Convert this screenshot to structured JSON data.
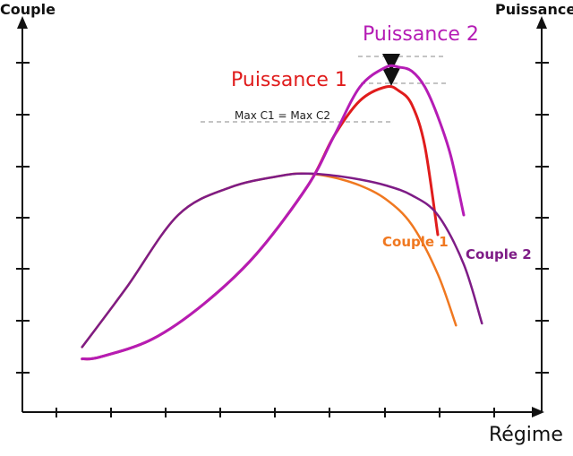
{
  "chart_data": {
    "type": "line",
    "title": "",
    "xlabel": "Régime",
    "ylabel_left": "Couple",
    "ylabel_right": "Puissance",
    "xlim": [
      0,
      20
    ],
    "ylim": [
      0,
      20
    ],
    "grid": false,
    "series": [
      {
        "name": "Couple 1",
        "color": "#f07820",
        "x": [
          2.3,
          4.0,
          6.0,
          8.0,
          10.0,
          11.0,
          12.0,
          13.0,
          14.0,
          15.0,
          16.0,
          16.7
        ],
        "y": [
          3.3,
          6.3,
          10.0,
          11.4,
          12.0,
          12.1,
          11.9,
          11.5,
          10.8,
          9.5,
          7.0,
          4.4
        ]
      },
      {
        "name": "Couple 2",
        "color": "#7e1c86",
        "x": [
          2.3,
          4.0,
          6.0,
          8.0,
          10.0,
          11.0,
          12.0,
          13.0,
          14.0,
          15.0,
          16.0,
          17.0,
          17.7
        ],
        "y": [
          3.3,
          6.3,
          10.0,
          11.4,
          12.0,
          12.1,
          12.0,
          11.8,
          11.5,
          11.0,
          10.0,
          7.5,
          4.5
        ]
      },
      {
        "name": "Puissance 1",
        "color": "#e01c1c",
        "x": [
          2.3,
          3.0,
          5.0,
          7.0,
          9.0,
          11.0,
          12.0,
          13.0,
          14.0,
          14.5,
          15.0,
          15.5,
          16.0
        ],
        "y": [
          2.7,
          2.8,
          3.7,
          5.5,
          8.0,
          11.5,
          14.0,
          15.8,
          16.5,
          16.3,
          15.6,
          13.5,
          9.0
        ]
      },
      {
        "name": "Puissance 2",
        "color": "#b51cb5",
        "x": [
          2.3,
          3.0,
          5.0,
          7.0,
          9.0,
          11.0,
          12.0,
          13.0,
          14.0,
          14.5,
          15.0,
          15.5,
          16.0,
          16.5,
          17.0
        ],
        "y": [
          2.7,
          2.8,
          3.7,
          5.5,
          8.0,
          11.5,
          14.0,
          16.5,
          17.5,
          17.5,
          17.3,
          16.5,
          15.0,
          13.0,
          10.0
        ]
      }
    ],
    "annotations": {
      "max_label": "Max C1 = Max C2"
    },
    "x_ticks": 9,
    "y_ticks": 7
  }
}
